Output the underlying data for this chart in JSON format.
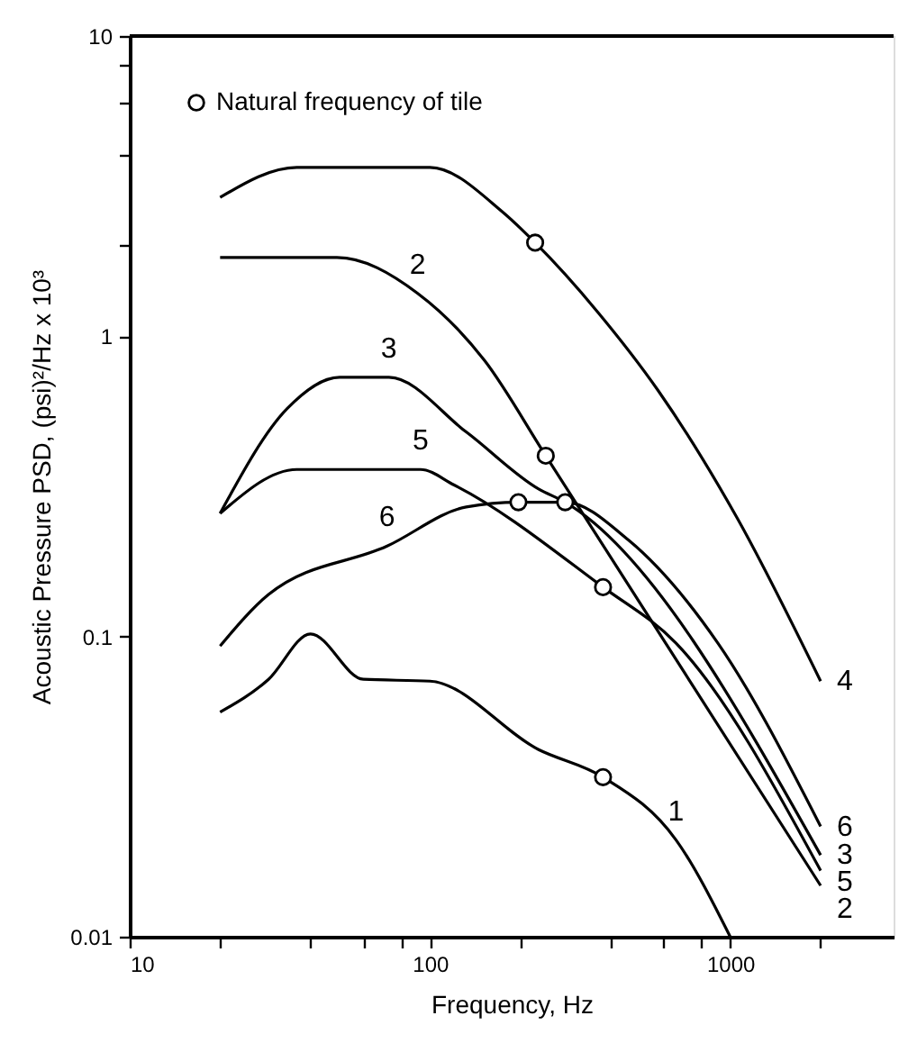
{
  "chart_data": {
    "type": "line",
    "xlabel": "Frequency, Hz",
    "ylabel": "Acoustic Pressure PSD, (psi)²/Hz x 10³",
    "log": "xy",
    "xlim": [
      10,
      3500
    ],
    "ylim": [
      0.01,
      10
    ],
    "xticks": [
      10,
      {
        "value": 20,
        "label": null
      },
      {
        "value": 40,
        "label": null
      },
      {
        "value": 60,
        "label": null
      },
      {
        "value": 80,
        "label": null
      },
      100,
      {
        "value": 200,
        "label": null
      },
      {
        "value": 400,
        "label": null
      },
      {
        "value": 600,
        "label": null
      },
      {
        "value": 800,
        "label": null
      },
      1000,
      {
        "value": 2000,
        "label": null
      }
    ],
    "yticks": [
      0.01,
      0.1,
      1,
      {
        "value": 2,
        "label": null
      },
      {
        "value": 4,
        "label": null
      },
      {
        "value": 6,
        "label": null
      },
      {
        "value": 8,
        "label": null
      },
      10
    ],
    "grid": false,
    "legend": "top left",
    "line_style": "solid",
    "marker": "none",
    "series": [
      {
        "color": "#000000",
        "x": [
          20,
          36,
          100,
          174,
          224,
          363,
          575,
          1050,
          2000
        ],
        "values": [
          2.9,
          3.65,
          3.65,
          2.6,
          2.05,
          1.2,
          0.66,
          0.25,
          0.071
        ]
      },
      {
        "color": "#000000",
        "x": [
          20,
          49,
          91,
          152,
          243,
          2000
        ],
        "values": [
          1.83,
          1.83,
          1.39,
          0.83,
          0.4,
          0.0148
        ]
      },
      {
        "color": "#000000",
        "x": [
          20,
          33.5,
          50,
          73,
          132,
          230,
          282,
          2000
        ],
        "values": [
          0.257,
          0.575,
          0.73,
          0.73,
          0.48,
          0.31,
          0.28,
          0.0187
        ]
      },
      {
        "color": "#000000",
        "x": [
          20,
          36,
          93,
          120,
          377,
          660,
          2000
        ],
        "values": [
          0.257,
          0.36,
          0.36,
          0.32,
          0.146,
          0.095,
          0.0166
        ]
      },
      {
        "color": "#000000",
        "x": [
          20,
          29,
          72,
          132,
          197,
          282,
          457,
          910,
          2000
        ],
        "values": [
          0.093,
          0.138,
          0.2,
          0.27,
          0.28,
          0.28,
          0.21,
          0.095,
          0.0233
        ]
      },
      {
        "color": "#000000",
        "x": [
          20,
          29,
          40,
          60,
          100,
          230,
          377,
          660,
          1000
        ],
        "values": [
          0.056,
          0.072,
          0.102,
          0.072,
          0.071,
          0.042,
          0.034,
          0.021,
          0.01
        ]
      },
      {
        "type": "scatter",
        "name": "Natural frequency of tile",
        "marker": "circle",
        "color": "#000000",
        "x": [
          224,
          243,
          282,
          197,
          377,
          377
        ],
        "values": [
          2.05,
          0.4,
          0.28,
          0.28,
          0.146,
          0.034
        ]
      }
    ],
    "annotations": [
      {
        "text": "2",
        "x": 91,
        "y": 1.39
      },
      {
        "text": "3",
        "x": 73,
        "y": 0.73
      },
      {
        "text": "5",
        "x": 93,
        "y": 0.36
      },
      {
        "text": "6",
        "x": 72,
        "y": 0.2
      },
      {
        "text": "1",
        "x": 660,
        "y": 0.021
      },
      {
        "text": "4",
        "x": 2000,
        "y": 0.071
      },
      {
        "text": "6",
        "x": 2000,
        "y": 0.0233
      },
      {
        "text": "3",
        "x": 2000,
        "y": 0.0187
      },
      {
        "text": "5",
        "x": 2000,
        "y": 0.0166
      },
      {
        "text": "2",
        "x": 2000,
        "y": 0.0148
      }
    ]
  }
}
